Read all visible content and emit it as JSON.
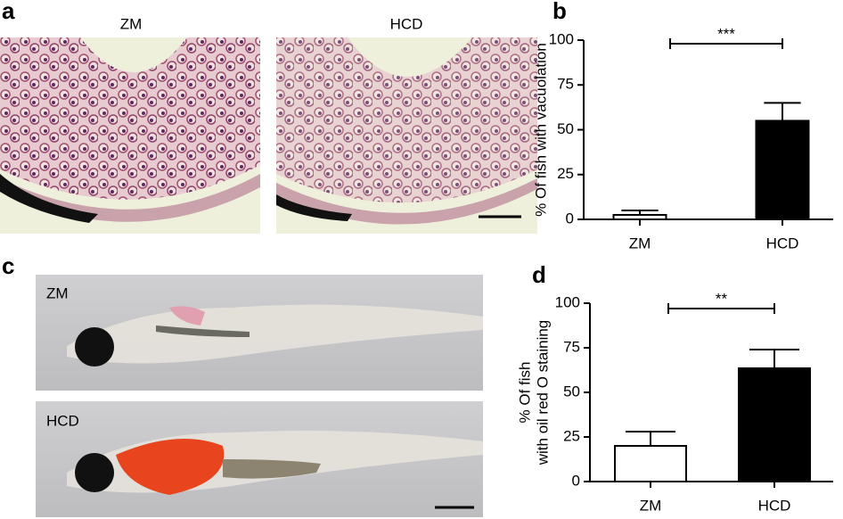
{
  "panels": {
    "a": "a",
    "b": "b",
    "c": "c",
    "d": "d",
    "histology_labels": [
      "ZM",
      "HCD"
    ],
    "fish_labels": [
      "ZM",
      "HCD"
    ]
  },
  "chart_data": [
    {
      "type": "bar",
      "ylabel": [
        "% Of fish with vacuolation"
      ],
      "categories": [
        "ZM",
        "HCD"
      ],
      "values": [
        2.5,
        55
      ],
      "errors": [
        2.5,
        10
      ],
      "colors": [
        "#ffffff",
        "#000000"
      ],
      "ylim": [
        0,
        100
      ],
      "yticks": [
        0,
        25,
        50,
        75,
        100
      ],
      "grid": false,
      "significance": "***"
    },
    {
      "type": "bar",
      "ylabel": [
        "% Of fish",
        "with oil red O staining"
      ],
      "categories": [
        "ZM",
        "HCD"
      ],
      "values": [
        20,
        63.5
      ],
      "errors": [
        8,
        10.5
      ],
      "colors": [
        "#ffffff",
        "#000000"
      ],
      "ylim": [
        0,
        100
      ],
      "yticks": [
        0,
        25,
        50,
        75,
        100
      ],
      "grid": false,
      "significance": "**"
    }
  ]
}
